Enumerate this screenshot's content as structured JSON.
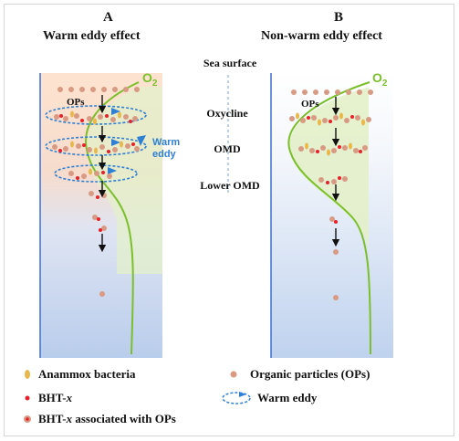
{
  "panel_a": {
    "letter": "A",
    "title": "Warm eddy effect",
    "ops_label": "OPs",
    "warm_label_line1": "Warm",
    "warm_label_line2": "eddy"
  },
  "panel_b": {
    "letter": "B",
    "title": "Non-warm eddy effect",
    "ops_label": "OPs"
  },
  "o2_label": "O",
  "o2_subscript": "2",
  "depth_labels": {
    "sea_surface": "Sea surface",
    "oxycline": "Oxycline",
    "omd": "OMD",
    "lower_omd": "Lower OMD"
  },
  "legend": {
    "anammox": "Anammox bacteria",
    "organic_particles": "Organic particles (OPs)",
    "bht_x_prefix": "BHT-",
    "bht_x_suffix": "x",
    "warm_eddy": "Warm eddy",
    "bht_assoc_prefix": "BHT-",
    "bht_assoc_italic": "x",
    "bht_assoc_suffix": " associated with OPs"
  },
  "colors": {
    "o2_curve": "#7bbf2a",
    "warm_eddy": "#2f7fd4",
    "particle": "#d99a84",
    "bht": "#e8202a",
    "anammox": "#e9b84a",
    "oxygen_fill": "#e3f0c9"
  }
}
